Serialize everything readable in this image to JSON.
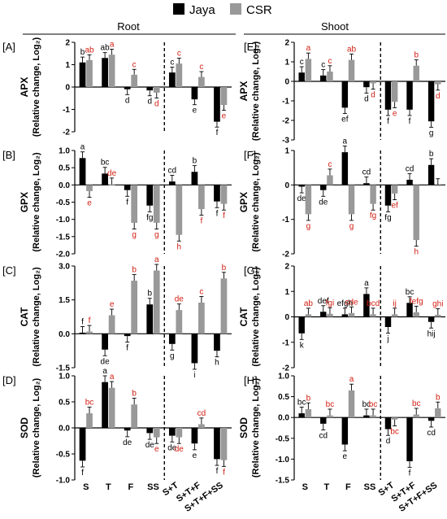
{
  "legend": {
    "series": [
      {
        "name": "Jaya",
        "color": "#000000"
      },
      {
        "name": "CSR",
        "color": "#999999"
      }
    ]
  },
  "sections": [
    "Root",
    "Shoot"
  ],
  "y_unit_label": "(Relative change, Log₂)",
  "colors": {
    "jaya": "#000000",
    "csr": "#999999",
    "jaya_letter": "#000000",
    "csr_letter": "#d21e12"
  },
  "x_categories": [
    "S",
    "T",
    "F",
    "SS",
    "S+T",
    "S+T+F",
    "S+T+F+SS"
  ],
  "chart_data": [
    {
      "panel": "[A]",
      "type": "bar",
      "ylabel": "APX",
      "ylim": [
        -2,
        2
      ],
      "yticks": [
        "2",
        "1",
        "0",
        "-1",
        "-2"
      ],
      "categories": [
        "S",
        "T",
        "F",
        "SS",
        "S+T",
        "S+T+F",
        "S+T+F+SS"
      ],
      "series": [
        {
          "name": "Jaya",
          "values": [
            1.1,
            1.3,
            -0.1,
            -0.15,
            0.65,
            -0.55,
            -1.55
          ],
          "letters": [
            "b",
            "ab",
            "d",
            "d",
            "c",
            "e",
            "f"
          ]
        },
        {
          "name": "CSR",
          "values": [
            1.2,
            1.45,
            0.55,
            -0.25,
            1.05,
            0.45,
            -0.8
          ],
          "letters": [
            "ab",
            "a",
            "c",
            "d",
            "c",
            "c",
            "e"
          ]
        }
      ]
    },
    {
      "panel": "[B]",
      "type": "bar",
      "ylabel": "GPX",
      "ylim": [
        -2.0,
        1.0
      ],
      "yticks": [
        "1.0",
        "0.5",
        "0.0",
        "-0.5",
        "-1.0",
        "-1.5",
        "-2.0"
      ],
      "categories": [
        "S",
        "T",
        "F",
        "SS",
        "S+T",
        "S+T+F",
        "S+T+F+SS"
      ],
      "series": [
        {
          "name": "Jaya",
          "values": [
            0.78,
            0.33,
            -0.15,
            -0.6,
            0.1,
            0.38,
            -0.48
          ],
          "letters": [
            "a",
            "bc",
            "f",
            "fg",
            "cd",
            "b",
            "f"
          ]
        },
        {
          "name": "CSR",
          "values": [
            -0.18,
            0.02,
            -1.1,
            -1.1,
            -1.45,
            -0.7,
            -0.55
          ],
          "letters": [
            "e",
            "de",
            "g",
            "g",
            "h",
            "f",
            "f"
          ]
        }
      ]
    },
    {
      "panel": "[C]",
      "type": "bar",
      "ylabel": "CAT",
      "ylim": [
        -1.5,
        3.0
      ],
      "yticks": [
        "3.0",
        "1.5",
        "0.0",
        "-1.5"
      ],
      "categories": [
        "S",
        "T",
        "F",
        "SS",
        "S+T",
        "S+T+F",
        "S+T+F+SS"
      ],
      "series": [
        {
          "name": "Jaya",
          "values": [
            0.05,
            -0.7,
            -0.1,
            1.3,
            -0.45,
            -1.3,
            -0.75
          ],
          "letters": [
            "f",
            "de",
            "f",
            "b",
            "g",
            "i",
            "h"
          ]
        },
        {
          "name": "CSR",
          "values": [
            0.1,
            0.82,
            2.35,
            2.8,
            1.05,
            1.38,
            2.45
          ],
          "letters": [
            "f",
            "e",
            "b",
            "a",
            "de",
            "c",
            "b"
          ]
        }
      ]
    },
    {
      "panel": "[D]",
      "type": "bar",
      "ylabel": "SOD",
      "ylim": [
        -1.0,
        1.0
      ],
      "yticks": [
        "1.0",
        "0.5",
        "0.0",
        "-0.5",
        "-1.0"
      ],
      "categories": [
        "S",
        "T",
        "F",
        "SS",
        "S+T",
        "S+T+F",
        "S+T+F+SS"
      ],
      "series": [
        {
          "name": "Jaya",
          "values": [
            -0.63,
            0.88,
            -0.05,
            -0.1,
            -0.15,
            -0.3,
            -0.6
          ],
          "letters": [
            "f",
            "a",
            "de",
            "de",
            "de",
            "e",
            "f"
          ]
        },
        {
          "name": "CSR",
          "values": [
            0.28,
            0.77,
            0.45,
            -0.18,
            -0.18,
            0.07,
            -0.62
          ],
          "letters": [
            "bc",
            "a",
            "b",
            "e",
            "de",
            "cd",
            "f"
          ]
        }
      ]
    },
    {
      "panel": "[E]",
      "type": "bar",
      "ylabel": "APX",
      "ylim": [
        -3,
        2
      ],
      "yticks": [
        "2",
        "1",
        "0",
        "-1",
        "-2",
        "-3"
      ],
      "categories": [
        "S",
        "T",
        "F",
        "SS",
        "S+T",
        "S+T+F",
        "S+T+F+SS"
      ],
      "series": [
        {
          "name": "Jaya",
          "values": [
            0.45,
            0.3,
            -1.35,
            -0.3,
            -1.45,
            -1.45,
            -2.05
          ],
          "letters": [
            "c",
            "c",
            "ef",
            "d",
            "f",
            "f",
            "g"
          ]
        },
        {
          "name": "CSR",
          "values": [
            1.15,
            0.5,
            1.1,
            -0.1,
            -1.05,
            0.8,
            -0.15
          ],
          "letters": [
            "a",
            "c",
            "ab",
            "d",
            "e",
            "b",
            "d"
          ]
        }
      ]
    },
    {
      "panel": "[F]",
      "type": "bar",
      "ylabel": "GPX",
      "ylim": [
        -2,
        1
      ],
      "yticks": [
        "1",
        "0",
        "-1",
        "-2"
      ],
      "categories": [
        "S",
        "T",
        "F",
        "SS",
        "S+T",
        "S+T+F",
        "S+T+F+SS"
      ],
      "series": [
        {
          "name": "Jaya",
          "values": [
            -0.05,
            -0.15,
            0.95,
            0.05,
            -0.6,
            0.15,
            0.58
          ],
          "letters": [
            "de",
            "de",
            "a",
            "cd",
            "fg",
            "cd",
            "b"
          ]
        },
        {
          "name": "CSR",
          "values": [
            -0.85,
            0.28,
            -0.85,
            -0.55,
            -0.25,
            -1.6,
            0.0
          ],
          "letters": [
            "g",
            "c",
            "g",
            "fg",
            "ef",
            "h",
            ""
          ]
        }
      ]
    },
    {
      "panel": "[G]",
      "type": "bar",
      "ylabel": "CAT",
      "ylim": [
        -2,
        2
      ],
      "yticks": [
        "2",
        "1",
        "0",
        "-1",
        "-2"
      ],
      "categories": [
        "S",
        "T",
        "F",
        "SS",
        "S+T",
        "S+T+F",
        "S+T+F+SS"
      ],
      "series": [
        {
          "name": "Jaya",
          "values": [
            -0.65,
            0.2,
            0.1,
            0.9,
            -0.4,
            0.55,
            -0.2
          ],
          "letters": [
            "k",
            "def",
            "efgh",
            "a",
            "j",
            "bc",
            "hij"
          ]
        },
        {
          "name": "CSR",
          "values": [
            0.1,
            0.12,
            0.15,
            0.1,
            0.1,
            0.18,
            0.08
          ],
          "letters": [
            "ab",
            "fgi",
            "cde",
            "bcd",
            "ij",
            "fefg",
            "ghi"
          ]
        }
      ]
    },
    {
      "panel": "[H]",
      "type": "bar",
      "ylabel": "SOD",
      "ylim": [
        -1.5,
        1.0
      ],
      "yticks": [
        "1.0",
        "0.5",
        "0.0",
        "-0.5",
        "-1.0",
        "-1.5"
      ],
      "categories": [
        "S",
        "T",
        "F",
        "SS",
        "S+T",
        "S+T+F",
        "S+T+F+SS"
      ],
      "series": [
        {
          "name": "Jaya",
          "values": [
            0.1,
            -0.15,
            -0.65,
            0.05,
            -0.28,
            -1.05,
            -0.08
          ],
          "letters": [
            "bc",
            "cd",
            "e",
            "bc",
            "d",
            "f",
            "cd"
          ]
        },
        {
          "name": "CSR",
          "values": [
            0.2,
            0.05,
            0.65,
            0.05,
            -0.05,
            0.07,
            0.22
          ],
          "letters": [
            "b",
            "bc",
            "a",
            "bc",
            "bc",
            "bc",
            "b"
          ]
        }
      ]
    }
  ]
}
